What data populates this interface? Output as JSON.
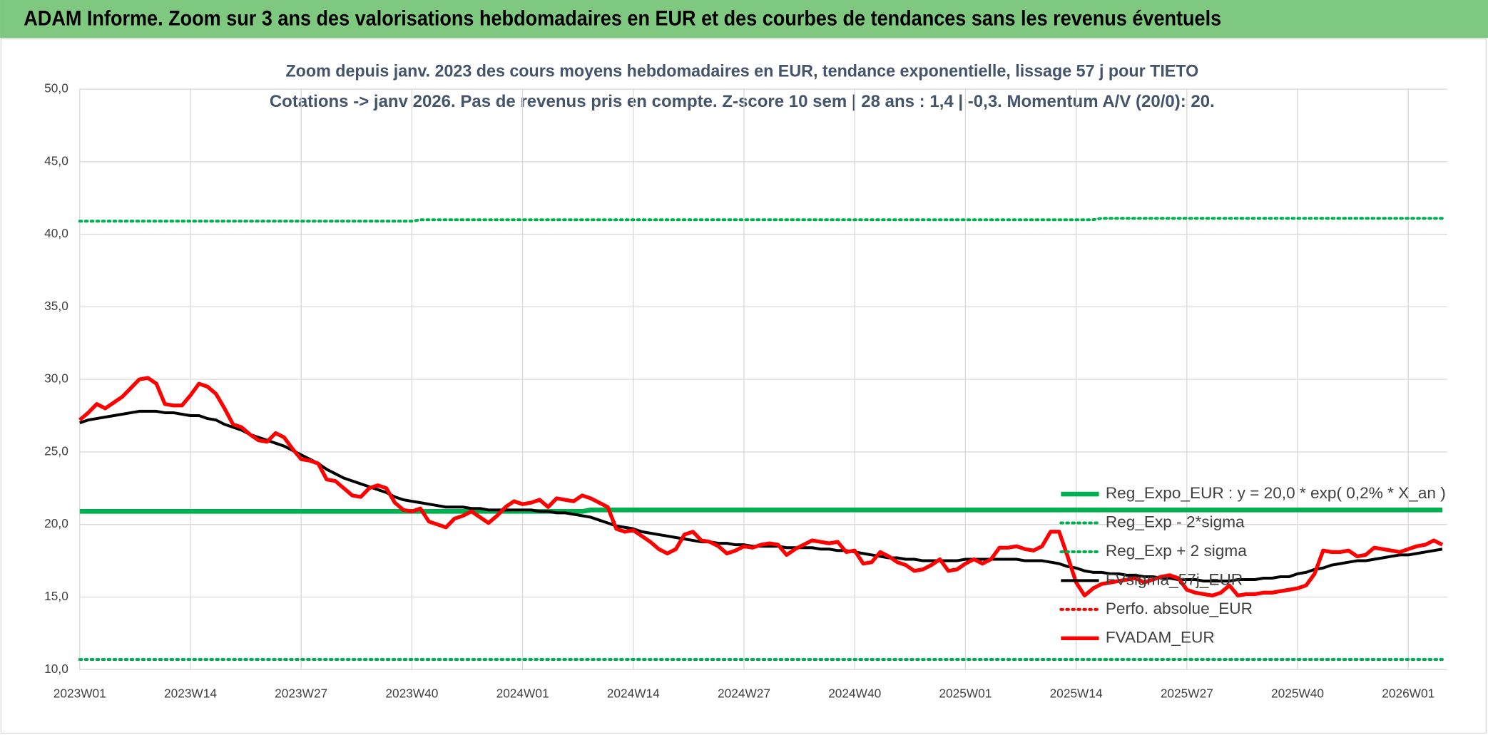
{
  "chart_data": {
    "type": "line",
    "title": "ADAM Informe. Zoom sur 3 ans des valorisations hebdomadaires en EUR et des courbes de tendances sans les revenus éventuels",
    "subtitle": "Zoom depuis janv. 2023 des cours moyens hebdomadaires en EUR, tendance exponentielle, lissage 57 j pour TIETO",
    "subtitle2": "Cotations -> janv 2026. Pas de revenus pris en compte. Z-score 10 sem | 28 ans : 1,4 | -0,3. Momentum A/V (20/0): 20.",
    "grid": true,
    "legend": "right",
    "ylim": [
      10,
      50
    ],
    "yticks": [
      {
        "value": 10,
        "label": "10,0"
      },
      {
        "value": 15,
        "label": "15,0"
      },
      {
        "value": 20,
        "label": "20,0"
      },
      {
        "value": 25,
        "label": "25,0"
      },
      {
        "value": 30,
        "label": "30,0"
      },
      {
        "value": 35,
        "label": "35,0"
      },
      {
        "value": 40,
        "label": "40,0"
      },
      {
        "value": 45,
        "label": "45,0"
      },
      {
        "value": 50,
        "label": "50,0"
      }
    ],
    "categories": [
      "2023W01",
      null,
      null,
      null,
      null,
      null,
      null,
      null,
      null,
      null,
      null,
      null,
      null,
      "2023W14",
      null,
      null,
      null,
      null,
      null,
      null,
      null,
      null,
      null,
      null,
      null,
      null,
      "2023W27",
      null,
      null,
      null,
      null,
      null,
      null,
      null,
      null,
      null,
      null,
      null,
      null,
      "2023W40",
      null,
      null,
      null,
      null,
      null,
      null,
      null,
      null,
      null,
      null,
      null,
      null,
      "2024W01",
      null,
      null,
      null,
      null,
      null,
      null,
      null,
      null,
      null,
      null,
      null,
      null,
      "2024W14",
      null,
      null,
      null,
      null,
      null,
      null,
      null,
      null,
      null,
      null,
      null,
      null,
      "2024W27",
      null,
      null,
      null,
      null,
      null,
      null,
      null,
      null,
      null,
      null,
      null,
      null,
      "2024W40",
      null,
      null,
      null,
      null,
      null,
      null,
      null,
      null,
      null,
      null,
      null,
      null,
      "2025W01",
      null,
      null,
      null,
      null,
      null,
      null,
      null,
      null,
      null,
      null,
      null,
      null,
      "2025W14",
      null,
      null,
      null,
      null,
      null,
      null,
      null,
      null,
      null,
      null,
      null,
      null,
      "2025W27",
      null,
      null,
      null,
      null,
      null,
      null,
      null,
      null,
      null,
      null,
      null,
      null,
      "2025W40",
      null,
      null,
      null,
      null,
      null,
      null,
      null,
      null,
      null,
      null,
      null,
      null,
      "2026W01",
      null,
      null,
      null,
      null
    ],
    "series": [
      {
        "name": "Reg_Expo_EUR : y = 20,0 * exp( 0,2% *  X_an )",
        "color": "#00b050",
        "line_style": "solid",
        "values": [
          20.9,
          20.9,
          20.9,
          20.9,
          20.9,
          20.9,
          20.9,
          20.9,
          20.9,
          20.9,
          20.9,
          20.9,
          20.9,
          20.9,
          20.9,
          20.9,
          20.9,
          20.9,
          20.9,
          20.9,
          20.9,
          20.9,
          20.9,
          20.9,
          20.9,
          20.9,
          20.9,
          20.9,
          20.9,
          20.9,
          20.9,
          20.9,
          20.9,
          20.9,
          20.9,
          20.9,
          20.9,
          20.9,
          20.9,
          20.9,
          20.9,
          20.9,
          20.9,
          20.9,
          20.9,
          20.9,
          20.9,
          20.9,
          20.9,
          20.9,
          20.9,
          20.9,
          20.9,
          20.9,
          20.9,
          20.9,
          20.9,
          20.9,
          20.9,
          20.9,
          21.0,
          21.0,
          21.0,
          21.0,
          21.0,
          21.0,
          21.0,
          21.0,
          21.0,
          21.0,
          21.0,
          21.0,
          21.0,
          21.0,
          21.0,
          21.0,
          21.0,
          21.0,
          21.0,
          21.0,
          21.0,
          21.0,
          21.0,
          21.0,
          21.0,
          21.0,
          21.0,
          21.0,
          21.0,
          21.0,
          21.0,
          21.0,
          21.0,
          21.0,
          21.0,
          21.0,
          21.0,
          21.0,
          21.0,
          21.0,
          21.0,
          21.0,
          21.0,
          21.0,
          21.0,
          21.0,
          21.0,
          21.0,
          21.0,
          21.0,
          21.0,
          21.0,
          21.0,
          21.0,
          21.0,
          21.0,
          21.0,
          21.0,
          21.0,
          21.0,
          21.0,
          21.0,
          21.0,
          21.0,
          21.0,
          21.0,
          21.0,
          21.0,
          21.0,
          21.0,
          21.0,
          21.0,
          21.0,
          21.0,
          21.0,
          21.0,
          21.0,
          21.0,
          21.0,
          21.0,
          21.0,
          21.0,
          21.0,
          21.0,
          21.0,
          21.0,
          21.0,
          21.0,
          21.0,
          21.0,
          21.0,
          21.0,
          21.0,
          21.0,
          21.0,
          21.0,
          21.0,
          21.0,
          21.0,
          21.0,
          21.0
        ]
      },
      {
        "name": "Reg_Exp - 2*sigma",
        "color": "#00b050",
        "line_style": "dotted",
        "values": [
          10.7,
          10.7,
          10.7,
          10.7,
          10.7,
          10.7,
          10.7,
          10.7,
          10.7,
          10.7,
          10.7,
          10.7,
          10.7,
          10.7,
          10.7,
          10.7,
          10.7,
          10.7,
          10.7,
          10.7,
          10.7,
          10.7,
          10.7,
          10.7,
          10.7,
          10.7,
          10.7,
          10.7,
          10.7,
          10.7,
          10.7,
          10.7,
          10.7,
          10.7,
          10.7,
          10.7,
          10.7,
          10.7,
          10.7,
          10.7,
          10.7,
          10.7,
          10.7,
          10.7,
          10.7,
          10.7,
          10.7,
          10.7,
          10.7,
          10.7,
          10.7,
          10.7,
          10.7,
          10.7,
          10.7,
          10.7,
          10.7,
          10.7,
          10.7,
          10.7,
          10.7,
          10.7,
          10.7,
          10.7,
          10.7,
          10.7,
          10.7,
          10.7,
          10.7,
          10.7,
          10.7,
          10.7,
          10.7,
          10.7,
          10.7,
          10.7,
          10.7,
          10.7,
          10.7,
          10.7,
          10.7,
          10.7,
          10.7,
          10.7,
          10.7,
          10.7,
          10.7,
          10.7,
          10.7,
          10.7,
          10.7,
          10.7,
          10.7,
          10.7,
          10.7,
          10.7,
          10.7,
          10.7,
          10.7,
          10.7,
          10.7,
          10.7,
          10.7,
          10.7,
          10.7,
          10.7,
          10.7,
          10.7,
          10.7,
          10.7,
          10.7,
          10.7,
          10.7,
          10.7,
          10.7,
          10.7,
          10.7,
          10.7,
          10.7,
          10.7,
          10.7,
          10.7,
          10.7,
          10.7,
          10.7,
          10.7,
          10.7,
          10.7,
          10.7,
          10.7,
          10.7,
          10.7,
          10.7,
          10.7,
          10.7,
          10.7,
          10.7,
          10.7,
          10.7,
          10.7,
          10.7,
          10.7,
          10.7,
          10.7,
          10.7,
          10.7,
          10.7,
          10.7,
          10.7,
          10.7,
          10.7,
          10.7,
          10.7,
          10.7,
          10.7,
          10.7,
          10.7,
          10.7,
          10.7,
          10.7,
          10.7
        ]
      },
      {
        "name": "Reg_Exp + 2 sigma",
        "color": "#00b050",
        "line_style": "dotted",
        "values": [
          40.9,
          40.9,
          40.9,
          40.9,
          40.9,
          40.9,
          40.9,
          40.9,
          40.9,
          40.9,
          40.9,
          40.9,
          40.9,
          40.9,
          40.9,
          40.9,
          40.9,
          40.9,
          40.9,
          40.9,
          40.9,
          40.9,
          40.9,
          40.9,
          40.9,
          40.9,
          40.9,
          40.9,
          40.9,
          40.9,
          40.9,
          40.9,
          40.9,
          40.9,
          40.9,
          40.9,
          40.9,
          40.9,
          40.9,
          40.9,
          41.0,
          41.0,
          41.0,
          41.0,
          41.0,
          41.0,
          41.0,
          41.0,
          41.0,
          41.0,
          41.0,
          41.0,
          41.0,
          41.0,
          41.0,
          41.0,
          41.0,
          41.0,
          41.0,
          41.0,
          41.0,
          41.0,
          41.0,
          41.0,
          41.0,
          41.0,
          41.0,
          41.0,
          41.0,
          41.0,
          41.0,
          41.0,
          41.0,
          41.0,
          41.0,
          41.0,
          41.0,
          41.0,
          41.0,
          41.0,
          41.0,
          41.0,
          41.0,
          41.0,
          41.0,
          41.0,
          41.0,
          41.0,
          41.0,
          41.0,
          41.0,
          41.0,
          41.0,
          41.0,
          41.0,
          41.0,
          41.0,
          41.0,
          41.0,
          41.0,
          41.0,
          41.0,
          41.0,
          41.0,
          41.0,
          41.0,
          41.0,
          41.0,
          41.0,
          41.0,
          41.0,
          41.0,
          41.0,
          41.0,
          41.0,
          41.0,
          41.0,
          41.0,
          41.0,
          41.0,
          41.1,
          41.1,
          41.1,
          41.1,
          41.1,
          41.1,
          41.1,
          41.1,
          41.1,
          41.1,
          41.1,
          41.1,
          41.1,
          41.1,
          41.1,
          41.1,
          41.1,
          41.1,
          41.1,
          41.1,
          41.1,
          41.1,
          41.1,
          41.1,
          41.1,
          41.1,
          41.1,
          41.1,
          41.1,
          41.1,
          41.1,
          41.1,
          41.1,
          41.1,
          41.1,
          41.1,
          41.1,
          41.1,
          41.1,
          41.1,
          41.1
        ]
      },
      {
        "name": "FVsigma_57j_EUR",
        "color": "#000000",
        "line_style": "solid",
        "values": [
          27.0,
          27.2,
          27.3,
          27.4,
          27.5,
          27.6,
          27.7,
          27.8,
          27.8,
          27.8,
          27.7,
          27.7,
          27.6,
          27.5,
          27.5,
          27.3,
          27.2,
          26.9,
          26.7,
          26.5,
          26.2,
          26.0,
          25.8,
          25.6,
          25.4,
          25.1,
          24.8,
          24.5,
          24.2,
          23.8,
          23.5,
          23.2,
          23.0,
          22.8,
          22.6,
          22.4,
          22.2,
          21.9,
          21.7,
          21.6,
          21.5,
          21.4,
          21.3,
          21.2,
          21.2,
          21.2,
          21.1,
          21.1,
          21.0,
          21.0,
          21.0,
          21.0,
          21.0,
          21.0,
          20.9,
          20.9,
          20.8,
          20.8,
          20.7,
          20.6,
          20.5,
          20.3,
          20.1,
          19.9,
          19.8,
          19.7,
          19.5,
          19.4,
          19.3,
          19.2,
          19.1,
          19.0,
          18.9,
          18.8,
          18.8,
          18.7,
          18.7,
          18.6,
          18.6,
          18.5,
          18.5,
          18.5,
          18.5,
          18.4,
          18.4,
          18.4,
          18.4,
          18.3,
          18.3,
          18.2,
          18.2,
          18.1,
          18.0,
          17.9,
          17.8,
          17.7,
          17.7,
          17.6,
          17.6,
          17.5,
          17.5,
          17.5,
          17.5,
          17.5,
          17.6,
          17.6,
          17.6,
          17.6,
          17.6,
          17.6,
          17.6,
          17.5,
          17.5,
          17.5,
          17.4,
          17.3,
          17.1,
          17.0,
          16.8,
          16.7,
          16.7,
          16.6,
          16.6,
          16.5,
          16.5,
          16.4,
          16.4,
          16.3,
          16.3,
          16.2,
          16.2,
          16.2,
          16.1,
          16.1,
          16.1,
          16.1,
          16.2,
          16.2,
          16.2,
          16.3,
          16.3,
          16.4,
          16.4,
          16.6,
          16.7,
          16.9,
          17.0,
          17.2,
          17.3,
          17.4,
          17.5,
          17.5,
          17.6,
          17.7,
          17.8,
          17.9,
          17.9,
          18.0,
          18.1,
          18.2,
          18.3
        ]
      },
      {
        "name": "Perfo. absolue_EUR",
        "color": "#ff0000",
        "line_style": "dotted",
        "values": [
          null,
          null,
          null,
          null,
          null,
          null,
          null,
          null,
          null,
          null,
          null,
          null,
          null,
          null,
          null,
          null,
          null,
          null,
          null,
          null,
          null,
          null,
          null,
          null,
          null,
          null,
          null,
          null,
          null,
          null,
          null,
          null,
          null,
          null,
          null,
          null,
          null,
          null,
          null,
          null,
          null,
          null,
          null,
          null,
          null,
          null,
          null,
          null,
          null,
          null,
          null,
          null,
          null,
          null,
          null,
          null,
          null,
          null,
          null,
          null,
          null,
          null,
          null,
          null,
          null,
          null,
          null,
          null,
          null,
          null,
          null,
          null,
          null,
          null,
          null,
          null,
          null,
          null,
          null,
          null,
          null,
          null,
          null,
          null,
          null,
          null,
          null,
          null,
          null,
          null,
          null,
          null,
          null,
          null,
          null,
          null,
          null,
          null,
          null,
          null,
          null,
          null,
          null,
          null,
          null,
          null,
          null,
          null,
          null,
          null,
          null,
          null,
          null,
          null,
          null,
          null,
          null,
          null,
          null,
          null,
          null,
          null,
          null,
          null,
          null,
          null,
          null,
          null,
          null,
          null,
          null,
          null,
          null,
          null,
          null,
          null,
          null,
          null,
          null,
          null,
          null,
          null,
          null,
          null,
          null,
          null,
          null,
          null,
          null,
          null,
          null,
          null,
          null,
          null,
          null,
          null,
          null,
          null,
          null,
          null,
          null
        ]
      },
      {
        "name": "FVADAM_EUR",
        "color": "#ff0000",
        "line_style": "solid",
        "values": [
          27.2,
          27.7,
          28.3,
          28.0,
          28.4,
          28.8,
          29.4,
          30.0,
          30.1,
          29.7,
          28.3,
          28.2,
          28.2,
          28.9,
          29.7,
          29.5,
          29.0,
          28.0,
          26.9,
          26.7,
          26.2,
          25.8,
          25.7,
          26.3,
          26.0,
          25.2,
          24.5,
          24.4,
          24.2,
          23.1,
          23.0,
          22.5,
          22.0,
          21.9,
          22.5,
          22.7,
          22.5,
          21.5,
          21.0,
          20.9,
          21.1,
          20.2,
          20.0,
          19.8,
          20.4,
          20.6,
          20.9,
          20.5,
          20.1,
          20.6,
          21.2,
          21.6,
          21.4,
          21.5,
          21.7,
          21.2,
          21.8,
          21.7,
          21.6,
          22.0,
          21.8,
          21.5,
          21.2,
          19.7,
          19.5,
          19.6,
          19.2,
          18.8,
          18.3,
          18.0,
          18.3,
          19.3,
          19.5,
          18.9,
          18.8,
          18.5,
          18.0,
          18.2,
          18.5,
          18.4,
          18.6,
          18.7,
          18.6,
          17.9,
          18.3,
          18.6,
          18.9,
          18.8,
          18.7,
          18.8,
          18.1,
          18.2,
          17.3,
          17.4,
          18.1,
          17.8,
          17.4,
          17.2,
          16.8,
          16.9,
          17.2,
          17.6,
          16.8,
          16.9,
          17.3,
          17.6,
          17.3,
          17.6,
          18.4,
          18.4,
          18.5,
          18.3,
          18.2,
          18.5,
          19.5,
          19.5,
          17.8,
          16.0,
          15.1,
          15.6,
          15.9,
          16.0,
          16.1,
          16.2,
          16.3,
          16.0,
          16.2,
          16.4,
          16.5,
          16.3,
          15.5,
          15.3,
          15.2,
          15.1,
          15.3,
          15.8,
          15.1,
          15.2,
          15.2,
          15.3,
          15.3,
          15.4,
          15.5,
          15.6,
          15.8,
          16.6,
          18.2,
          18.1,
          18.1,
          18.2,
          17.8,
          17.9,
          18.4,
          18.3,
          18.2,
          18.1,
          18.3,
          18.5,
          18.6,
          18.9,
          18.6
        ]
      }
    ]
  }
}
